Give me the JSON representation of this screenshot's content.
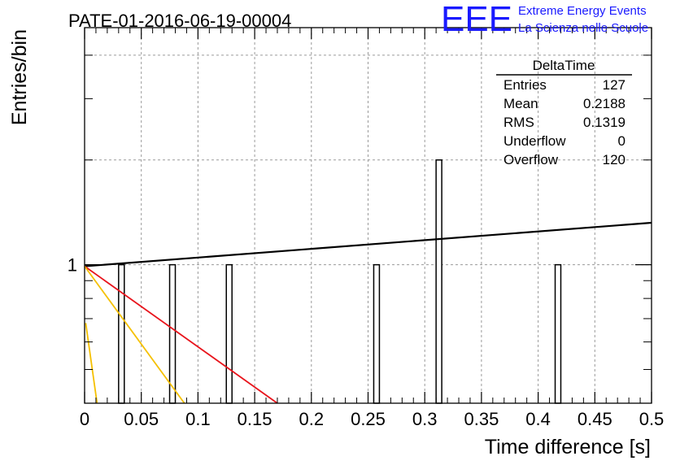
{
  "header": {
    "run_title": "PATE-01-2016-06-19-00004",
    "logo_text": "EEE",
    "logo_line1": "Extreme Energy Events",
    "logo_line2": "La Scienza nelle Scuole"
  },
  "stats_box": {
    "title": "DeltaTime",
    "rows": [
      {
        "label": "Entries",
        "value": "127"
      },
      {
        "label": "Mean",
        "value": "0.2188"
      },
      {
        "label": "RMS",
        "value": "0.1319"
      },
      {
        "label": "Underflow",
        "value": "0"
      },
      {
        "label": "Overflow",
        "value": "120"
      }
    ]
  },
  "colors": {
    "histogram": "#000000",
    "fit_black": "#000000",
    "fit_red": "#e8141c",
    "fit_yellow": "#f5c000",
    "grid": "#9a9a9a",
    "logo": "#1a1aff"
  },
  "chart_data": {
    "type": "bar",
    "xlabel": "Time difference [s]",
    "ylabel": "Entries/bin",
    "xlim": [
      0,
      0.5
    ],
    "ylim": [
      0.4,
      4.8
    ],
    "log_y": true,
    "grid": true,
    "x_ticks": [
      "0",
      "0.05",
      "0.1",
      "0.15",
      "0.2",
      "0.25",
      "0.3",
      "0.35",
      "0.4",
      "0.45",
      "0.5"
    ],
    "y_ticks": [
      "1"
    ],
    "bin_width": 0.005,
    "bins": [
      {
        "x": 0.0325,
        "value": 1
      },
      {
        "x": 0.0775,
        "value": 1
      },
      {
        "x": 0.1275,
        "value": 1
      },
      {
        "x": 0.2575,
        "value": 1
      },
      {
        "x": 0.3125,
        "value": 2
      },
      {
        "x": 0.4175,
        "value": 1
      }
    ],
    "lines": [
      {
        "color": "black",
        "x": [
          0,
          0.5
        ],
        "y": [
          0.99,
          1.32
        ]
      },
      {
        "color": "red",
        "x": [
          0,
          0.17
        ],
        "y": [
          0.99,
          0.4
        ]
      },
      {
        "color": "yellow",
        "x": [
          0,
          0.088
        ],
        "y": [
          0.99,
          0.4
        ]
      },
      {
        "color": "yellow",
        "x": [
          0.001,
          0.011
        ],
        "y": [
          0.68,
          0.4
        ]
      }
    ]
  }
}
